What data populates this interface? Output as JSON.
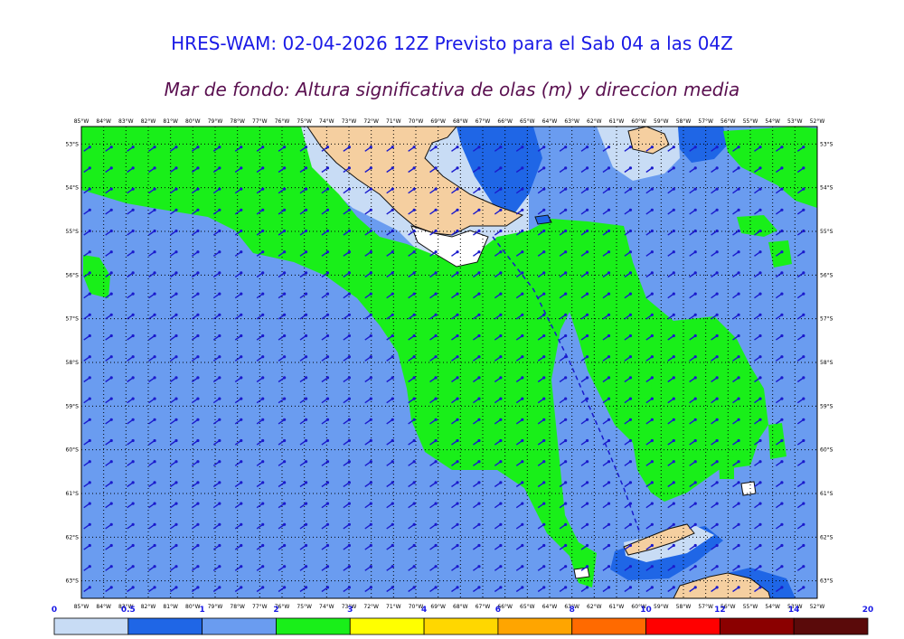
{
  "title": "HRES-WAM: 02-04-2026 12Z Previsto para el Sab 04 a las 04Z",
  "subtitle": "Mar de fondo: Altura significativa de olas (m) y direccion media",
  "map": {
    "lon_labels": [
      "85°W",
      "84°W",
      "83°W",
      "82°W",
      "81°W",
      "80°W",
      "79°W",
      "78°W",
      "77°W",
      "76°W",
      "75°W",
      "74°W",
      "73°W",
      "72°W",
      "71°W",
      "70°W",
      "69°W",
      "68°W",
      "67°W",
      "66°W",
      "65°W",
      "64°W",
      "63°W",
      "62°W",
      "61°W",
      "60°W",
      "59°W",
      "58°W",
      "57°W",
      "56°W",
      "55°W",
      "54°W",
      "53°W",
      "52°W"
    ],
    "lat_labels": [
      "53°S",
      "54°S",
      "55°S",
      "56°S",
      "57°S",
      "58°S",
      "59°S",
      "60°S",
      "61°S",
      "62°S",
      "63°S"
    ],
    "lon_range": [
      -85,
      -52
    ],
    "lat_range": [
      -52.6,
      -63.4
    ],
    "colors": {
      "ocean_base": "#6a9cf0",
      "swell_green": "#19ef19",
      "land": "#f5cfa0",
      "calm_light": "#c8dcf5",
      "calm_mid": "#1f66e6",
      "arrow": "#1a1acc",
      "grid": "#000000",
      "track": "#1a1acc"
    }
  },
  "colorbar": {
    "ticks": [
      "0",
      "0.5",
      "1",
      "2",
      "3",
      "4",
      "6",
      "8",
      "10",
      "12",
      "14",
      "20"
    ],
    "colors": [
      "#c8dcf5",
      "#1f66e6",
      "#6a9cf0",
      "#19ef19",
      "#ffff00",
      "#ffd700",
      "#ffa500",
      "#ff6a00",
      "#ff0000",
      "#8b0000",
      "#5a0a0a",
      "#333333"
    ]
  }
}
